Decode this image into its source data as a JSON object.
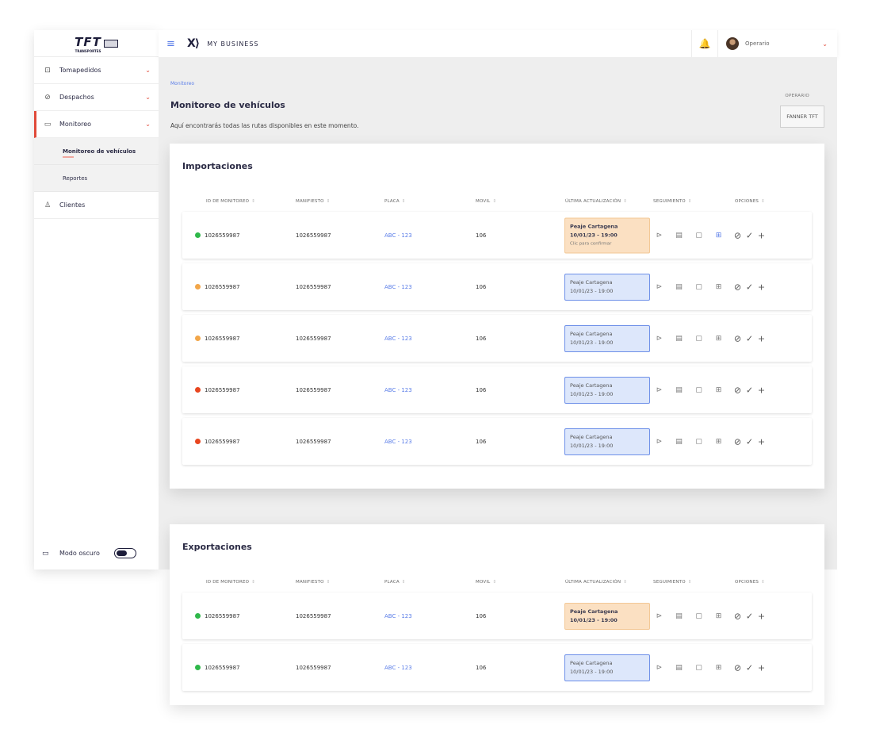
{
  "brand": {
    "logo_text": "TFT",
    "logo_sub": "TRANSPORTES",
    "app_name": "MY BUSINESS"
  },
  "sidebar": {
    "items": [
      {
        "label": "Tomapedidos",
        "icon": "order-icon"
      },
      {
        "label": "Despachos",
        "icon": "check-circle-icon"
      },
      {
        "label": "Monitoreo",
        "icon": "truck-icon"
      }
    ],
    "subitems": [
      {
        "label": "Monitoreo de vehículos"
      },
      {
        "label": "Reportes"
      }
    ],
    "clients_label": "Clientes",
    "dark_mode_label": "Modo oscuro"
  },
  "topbar": {
    "user_name": "Operario"
  },
  "page": {
    "breadcrumb": "Monitoreo",
    "title": "Monitoreo de vehículos",
    "subtitle": "Aquí encontrarás todas las rutas disponibles en este momento.",
    "operator_label": "OPERARIO",
    "operator_value": "FANNER TFT"
  },
  "columns": [
    "ID DE MONITOREO",
    "MANIFIESTO",
    "PLACA",
    "MOVIL",
    "ÚLTIMA ACTUALIZACIÓN",
    "SEGUIMIENTO",
    "OPCIONES"
  ],
  "colors": {
    "green": "#2fb84a",
    "orange": "#f2a649",
    "red": "#e8461f",
    "accent": "#5a7de8",
    "danger": "#e04a3a"
  },
  "importaciones": {
    "title": "Importaciones",
    "rows": [
      {
        "status": "green",
        "id": "1026559987",
        "manifiesto": "1026559987",
        "placa": "ABC - 123",
        "movil": "106",
        "upd_style": "warn",
        "upd_place": "Peaje Cartagena",
        "upd_time": "10/01/23 - 19:00",
        "upd_note": "Clic para confirmar"
      },
      {
        "status": "orange",
        "id": "1026559987",
        "manifiesto": "1026559987",
        "placa": "ABC - 123",
        "movil": "106",
        "upd_style": "info",
        "upd_place": "Peaje Cartagena",
        "upd_time": "10/01/23 - 19:00",
        "upd_note": ""
      },
      {
        "status": "orange",
        "id": "1026559987",
        "manifiesto": "1026559987",
        "placa": "ABC - 123",
        "movil": "106",
        "upd_style": "info",
        "upd_place": "Peaje Cartagena",
        "upd_time": "10/01/23 - 19:00",
        "upd_note": ""
      },
      {
        "status": "red",
        "id": "1026559987",
        "manifiesto": "1026559987",
        "placa": "ABC - 123",
        "movil": "106",
        "upd_style": "info",
        "upd_place": "Peaje Cartagena",
        "upd_time": "10/01/23 - 19:00",
        "upd_note": ""
      },
      {
        "status": "red",
        "id": "1026559987",
        "manifiesto": "1026559987",
        "placa": "ABC - 123",
        "movil": "106",
        "upd_style": "info",
        "upd_place": "Peaje Cartagena",
        "upd_time": "10/01/23 - 19:00",
        "upd_note": ""
      }
    ]
  },
  "exportaciones": {
    "title": "Exportaciones",
    "rows": [
      {
        "status": "green",
        "id": "1026559987",
        "manifiesto": "1026559987",
        "placa": "ABC - 123",
        "movil": "106",
        "upd_style": "warn",
        "upd_place": "Peaje Cartagena",
        "upd_time": "10/01/23 - 19:00",
        "upd_note": ""
      },
      {
        "status": "green",
        "id": "1026559987",
        "manifiesto": "1026559987",
        "placa": "ABC - 123",
        "movil": "106",
        "upd_style": "info",
        "upd_place": "Peaje Cartagena",
        "upd_time": "10/01/23 - 19:00",
        "upd_note": ""
      }
    ]
  },
  "icons": {
    "tracking": [
      "navigation-icon",
      "clipboard-icon",
      "document-icon",
      "add-document-icon"
    ],
    "options": [
      "cancel-icon",
      "check-icon",
      "plus-icon"
    ]
  }
}
